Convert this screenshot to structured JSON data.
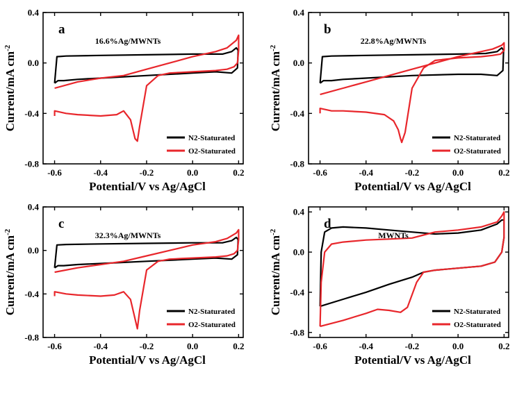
{
  "chart_data": [
    {
      "type": "line",
      "panel_letter": "a",
      "title": "16.6%Ag/MWNTs",
      "xlabel": "Potential/V vs Ag/AgCl",
      "ylabel": "Current/mA cm",
      "ylabel_sup": "-2",
      "xlim": [
        -0.65,
        0.22
      ],
      "ylim": [
        -0.8,
        0.4
      ],
      "xticks": [
        "-0.6",
        "-0.4",
        "-0.2",
        "0.0",
        "0.2"
      ],
      "yticks": [
        "-0.8",
        "-0.4",
        "0.0",
        "0.4"
      ],
      "legend_position": "bottom-right",
      "colors": {
        "n2": "#000000",
        "o2": "#e8262b"
      },
      "series": [
        {
          "name": "N2-Staturated",
          "x": [
            -0.6,
            -0.585,
            -0.56,
            -0.5,
            -0.4,
            -0.2,
            0.0,
            0.1,
            0.17,
            0.195,
            0.198,
            0.19,
            0.17,
            0.13,
            0.1,
            0.0,
            -0.2,
            -0.4,
            -0.55,
            -0.59,
            -0.6
          ],
          "y": [
            -0.16,
            -0.14,
            -0.14,
            -0.13,
            -0.12,
            -0.1,
            -0.08,
            -0.07,
            -0.08,
            -0.04,
            0.1,
            0.12,
            0.09,
            0.07,
            0.07,
            0.07,
            0.065,
            0.06,
            0.055,
            0.05,
            -0.16
          ]
        },
        {
          "name": "O2-Staturated",
          "x": [
            -0.6,
            -0.6,
            -0.55,
            -0.5,
            -0.4,
            -0.33,
            -0.3,
            -0.27,
            -0.25,
            -0.24,
            -0.23,
            -0.2,
            -0.15,
            -0.1,
            -0.05,
            0.0,
            0.1,
            0.15,
            0.18,
            0.195,
            0.2,
            0.2,
            0.19,
            0.15,
            0.1,
            0.0,
            -0.1,
            -0.2,
            -0.3,
            -0.4,
            -0.5,
            -0.6
          ],
          "y": [
            -0.42,
            -0.38,
            -0.4,
            -0.41,
            -0.42,
            -0.41,
            -0.38,
            -0.45,
            -0.6,
            -0.62,
            -0.5,
            -0.18,
            -0.1,
            -0.08,
            -0.075,
            -0.07,
            -0.06,
            -0.05,
            -0.03,
            0.0,
            0.1,
            0.22,
            0.18,
            0.12,
            0.09,
            0.05,
            0.0,
            -0.05,
            -0.1,
            -0.12,
            -0.15,
            -0.2
          ]
        }
      ]
    },
    {
      "type": "line",
      "panel_letter": "b",
      "title": "22.8%Ag/MWNTs",
      "xlabel": "Potential/V vs Ag/AgCl",
      "ylabel": "Current/mA cm",
      "ylabel_sup": "-2",
      "xlim": [
        -0.65,
        0.22
      ],
      "ylim": [
        -0.8,
        0.4
      ],
      "xticks": [
        "-0.6",
        "-0.4",
        "-0.2",
        "0.0",
        "0.2"
      ],
      "yticks": [
        "-0.8",
        "-0.4",
        "0.0",
        "0.4"
      ],
      "legend_position": "bottom-right",
      "colors": {
        "n2": "#000000",
        "o2": "#e8262b"
      },
      "series": [
        {
          "name": "N2-Staturated",
          "x": [
            -0.6,
            -0.585,
            -0.55,
            -0.5,
            -0.4,
            -0.2,
            0.0,
            0.1,
            0.17,
            0.195,
            0.198,
            0.19,
            0.17,
            0.12,
            0.0,
            -0.2,
            -0.4,
            -0.55,
            -0.59,
            -0.6
          ],
          "y": [
            -0.16,
            -0.14,
            -0.14,
            -0.13,
            -0.12,
            -0.1,
            -0.09,
            -0.09,
            -0.1,
            -0.06,
            0.1,
            0.12,
            0.09,
            0.075,
            0.07,
            0.065,
            0.06,
            0.055,
            0.05,
            -0.16
          ]
        },
        {
          "name": "O2-Staturated",
          "x": [
            -0.6,
            -0.6,
            -0.55,
            -0.5,
            -0.4,
            -0.32,
            -0.28,
            -0.26,
            -0.25,
            -0.245,
            -0.23,
            -0.2,
            -0.15,
            -0.1,
            0.0,
            0.1,
            0.15,
            0.185,
            0.2,
            0.2,
            0.19,
            0.15,
            0.1,
            0.0,
            -0.1,
            -0.2,
            -0.3,
            -0.4,
            -0.5,
            -0.6
          ],
          "y": [
            -0.4,
            -0.36,
            -0.38,
            -0.38,
            -0.39,
            -0.41,
            -0.46,
            -0.53,
            -0.6,
            -0.63,
            -0.55,
            -0.2,
            -0.04,
            0.02,
            0.04,
            0.05,
            0.06,
            0.07,
            0.1,
            0.16,
            0.14,
            0.11,
            0.09,
            0.05,
            0.0,
            -0.05,
            -0.1,
            -0.15,
            -0.2,
            -0.25
          ]
        }
      ]
    },
    {
      "type": "line",
      "panel_letter": "c",
      "title": "32.3%Ag/MWNTs",
      "xlabel": "Potential/V vs Ag/AgCl",
      "ylabel": "Current/mA cm",
      "ylabel_sup": "-2",
      "xlim": [
        -0.65,
        0.22
      ],
      "ylim": [
        -0.8,
        0.4
      ],
      "xticks": [
        "-0.6",
        "-0.4",
        "-0.2",
        "0.0",
        "0.2"
      ],
      "yticks": [
        "-0.8",
        "-0.4",
        "0.0",
        "0.4"
      ],
      "legend_position": "bottom-right",
      "colors": {
        "n2": "#000000",
        "o2": "#e8262b"
      },
      "series": [
        {
          "name": "N2-Staturated",
          "x": [
            -0.6,
            -0.585,
            -0.56,
            -0.5,
            -0.4,
            -0.2,
            0.0,
            0.1,
            0.17,
            0.195,
            0.198,
            0.19,
            0.17,
            0.13,
            0.1,
            0.0,
            -0.2,
            -0.4,
            -0.55,
            -0.59,
            -0.6
          ],
          "y": [
            -0.16,
            -0.14,
            -0.14,
            -0.13,
            -0.12,
            -0.1,
            -0.08,
            -0.07,
            -0.08,
            -0.04,
            0.1,
            0.12,
            0.09,
            0.07,
            0.07,
            0.07,
            0.065,
            0.06,
            0.055,
            0.05,
            -0.16
          ]
        },
        {
          "name": "O2-Staturated",
          "x": [
            -0.6,
            -0.6,
            -0.55,
            -0.5,
            -0.4,
            -0.34,
            -0.3,
            -0.27,
            -0.25,
            -0.24,
            -0.23,
            -0.2,
            -0.15,
            -0.1,
            -0.05,
            0.0,
            0.1,
            0.15,
            0.18,
            0.195,
            0.2,
            0.2,
            0.19,
            0.15,
            0.1,
            0.0,
            -0.1,
            -0.2,
            -0.3,
            -0.4,
            -0.5,
            -0.6
          ],
          "y": [
            -0.42,
            -0.38,
            -0.4,
            -0.41,
            -0.42,
            -0.41,
            -0.38,
            -0.45,
            -0.63,
            -0.72,
            -0.55,
            -0.18,
            -0.1,
            -0.08,
            -0.075,
            -0.07,
            -0.06,
            -0.05,
            -0.03,
            0.0,
            0.1,
            0.19,
            0.16,
            0.11,
            0.08,
            0.05,
            0.0,
            -0.05,
            -0.1,
            -0.13,
            -0.16,
            -0.2
          ]
        }
      ]
    },
    {
      "type": "line",
      "panel_letter": "d",
      "title": "MWNTs",
      "xlabel": "Potential/V vs Ag/AgCl",
      "ylabel": "Current/mA cm",
      "ylabel_sup": "-2",
      "xlim": [
        -0.65,
        0.22
      ],
      "ylim": [
        -0.85,
        0.45
      ],
      "xticks": [
        "-0.6",
        "-0.4",
        "-0.2",
        "0.0",
        "0.2"
      ],
      "yticks": [
        "-0.8",
        "-0.4",
        "0.0",
        "0.4"
      ],
      "legend_position": "bottom-right",
      "colors": {
        "n2": "#000000",
        "o2": "#e8262b"
      },
      "series": [
        {
          "name": "N2-Staturated",
          "x": [
            -0.6,
            -0.5,
            -0.4,
            -0.3,
            -0.2,
            -0.15,
            -0.1,
            0.0,
            0.1,
            0.16,
            0.19,
            0.2,
            0.2,
            0.19,
            0.17,
            0.1,
            0.0,
            -0.1,
            -0.2,
            -0.3,
            -0.4,
            -0.5,
            -0.55,
            -0.58,
            -0.595,
            -0.6
          ],
          "y": [
            -0.54,
            -0.47,
            -0.4,
            -0.32,
            -0.25,
            -0.2,
            -0.18,
            -0.16,
            -0.14,
            -0.1,
            0.0,
            0.15,
            0.32,
            0.32,
            0.28,
            0.22,
            0.19,
            0.18,
            0.2,
            0.22,
            0.24,
            0.25,
            0.24,
            0.2,
            0.0,
            -0.54
          ]
        },
        {
          "name": "O2-Staturated",
          "x": [
            -0.6,
            -0.5,
            -0.4,
            -0.35,
            -0.3,
            -0.25,
            -0.22,
            -0.18,
            -0.15,
            -0.1,
            0.0,
            0.1,
            0.16,
            0.19,
            0.2,
            0.2,
            0.19,
            0.17,
            0.1,
            0.0,
            -0.1,
            -0.15,
            -0.2,
            -0.3,
            -0.4,
            -0.5,
            -0.55,
            -0.58,
            -0.595,
            -0.6
          ],
          "y": [
            -0.74,
            -0.68,
            -0.61,
            -0.57,
            -0.58,
            -0.6,
            -0.55,
            -0.3,
            -0.2,
            -0.18,
            -0.16,
            -0.14,
            -0.1,
            0.0,
            0.15,
            0.4,
            0.36,
            0.3,
            0.25,
            0.22,
            0.2,
            0.17,
            0.14,
            0.13,
            0.12,
            0.1,
            0.08,
            0.0,
            -0.3,
            -0.74
          ]
        }
      ]
    }
  ]
}
